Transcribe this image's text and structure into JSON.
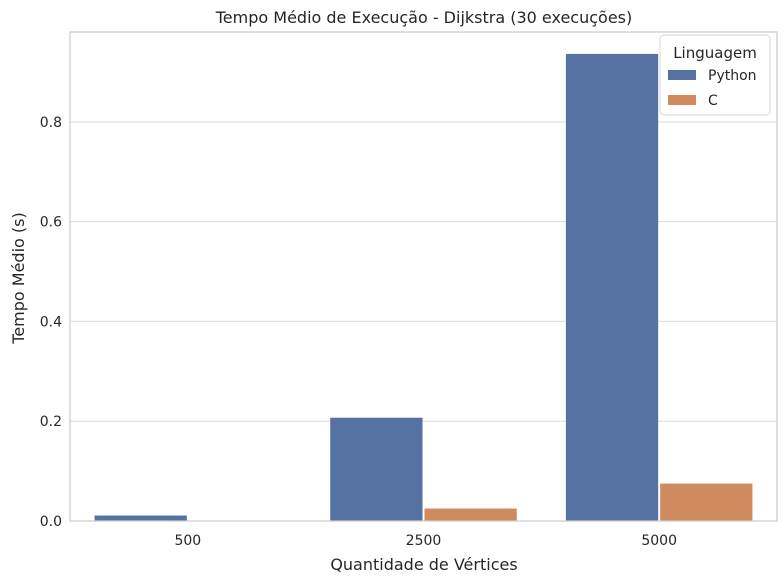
{
  "chart_data": {
    "type": "bar",
    "title": "Tempo Médio de Execução - Dijkstra (30 execuções)",
    "xlabel": "Quantidade de Vértices",
    "ylabel": "Tempo Médio (s)",
    "categories": [
      "500",
      "2500",
      "5000"
    ],
    "series": [
      {
        "name": "Python",
        "values": [
          0.011,
          0.207,
          0.936
        ],
        "color": "#5572a3"
      },
      {
        "name": "C",
        "values": [
          0.001,
          0.025,
          0.075
        ],
        "color": "#cf8a5e"
      }
    ],
    "ylim": [
      0,
      0.98
    ],
    "yticks": [
      0.0,
      0.2,
      0.4,
      0.6,
      0.8
    ],
    "ytick_labels": [
      "0.0",
      "0.2",
      "0.4",
      "0.6",
      "0.8"
    ],
    "grid": true,
    "legend": {
      "title": "Linguagem",
      "placement": "top-right"
    }
  }
}
